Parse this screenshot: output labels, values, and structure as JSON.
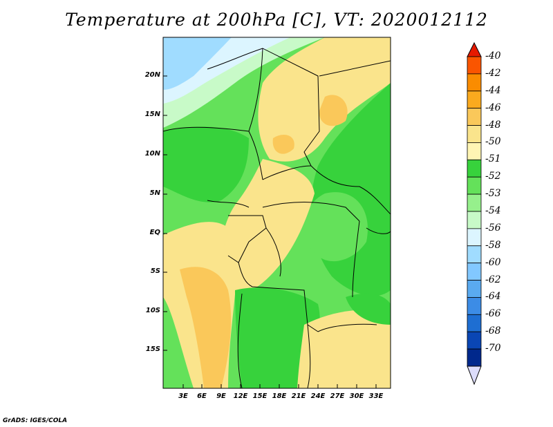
{
  "map": {
    "title": "Temperature at 200hPa [C], VT: 2020012112",
    "lat_labels": [
      "20N",
      "15N",
      "10N",
      "5N",
      "EQ",
      "5S",
      "10S",
      "15S"
    ],
    "lon_labels": [
      "3E",
      "6E",
      "9E",
      "12E",
      "15E",
      "18E",
      "21E",
      "24E",
      "27E",
      "30E",
      "33E"
    ],
    "footer": "GrADS: IGES/COLA"
  },
  "colorbar": {
    "labels": [
      "-40",
      "-42",
      "-44",
      "-46",
      "-48",
      "-50",
      "-51",
      "-52",
      "-53",
      "-54",
      "-56",
      "-58",
      "-60",
      "-62",
      "-64",
      "-66",
      "-68",
      "-70"
    ],
    "colors": [
      "#e61a00",
      "#fa5500",
      "#fa8c00",
      "#faaa1e",
      "#fac85a",
      "#fae48c",
      "#fff5b4",
      "#37d23c",
      "#64e15a",
      "#96f08c",
      "#c8fac8",
      "#dcf5ff",
      "#a0dcff",
      "#82c8ff",
      "#5aaaf0",
      "#3c8ce6",
      "#1e6ed2",
      "#0a46b4",
      "#00288c",
      "#dcdcfa"
    ]
  },
  "legend_colors": {
    "land_border": "#000000",
    "warm": "#fae48c",
    "cool": "#37d23c",
    "cold": "#a0dcff"
  }
}
